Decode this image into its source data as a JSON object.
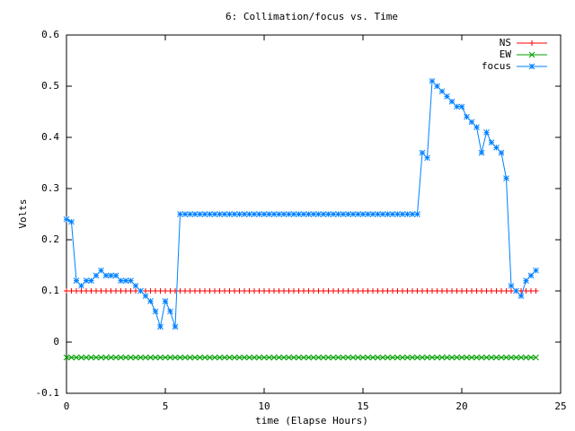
{
  "chart_data": {
    "type": "line",
    "title": "6: Collimation/focus vs. Time",
    "x_label": "time (Elapse Hours)",
    "y_label": "Volts",
    "legend": "top-right",
    "xlim": [
      0,
      25
    ],
    "xticks": [
      0,
      5,
      10,
      15,
      20,
      25
    ],
    "ylim": [
      -0.1,
      0.6
    ],
    "yticks": [
      -0.1,
      0,
      0.1,
      0.2,
      0.3,
      0.4,
      0.5,
      0.6
    ],
    "x": [
      0,
      0.25,
      0.5,
      0.75,
      1,
      1.25,
      1.5,
      1.75,
      2,
      2.25,
      2.5,
      2.75,
      3,
      3.25,
      3.5,
      3.75,
      4,
      4.25,
      4.5,
      4.75,
      5,
      5.25,
      5.5,
      5.75,
      6,
      6.25,
      6.5,
      6.75,
      7,
      7.25,
      7.5,
      7.75,
      8,
      8.25,
      8.5,
      8.75,
      9,
      9.25,
      9.5,
      9.75,
      10,
      10.25,
      10.5,
      10.75,
      11,
      11.25,
      11.5,
      11.75,
      12,
      12.25,
      12.5,
      12.75,
      13,
      13.25,
      13.5,
      13.75,
      14,
      14.25,
      14.5,
      14.75,
      15,
      15.25,
      15.5,
      15.75,
      16,
      16.25,
      16.5,
      16.75,
      17,
      17.25,
      17.5,
      17.75,
      18,
      18.25,
      18.5,
      18.75,
      19,
      19.25,
      19.5,
      19.75,
      20,
      20.25,
      20.5,
      20.75,
      21,
      21.25,
      21.5,
      21.75,
      22,
      22.25,
      22.5,
      22.75,
      23,
      23.25,
      23.5,
      23.75
    ],
    "series": [
      {
        "name": "NS",
        "color": "#ff0000",
        "marker": "plus",
        "values": [
          0.1,
          0.1,
          0.1,
          0.1,
          0.1,
          0.1,
          0.1,
          0.1,
          0.1,
          0.1,
          0.1,
          0.1,
          0.1,
          0.1,
          0.1,
          0.1,
          0.1,
          0.1,
          0.1,
          0.1,
          0.1,
          0.1,
          0.1,
          0.1,
          0.1,
          0.1,
          0.1,
          0.1,
          0.1,
          0.1,
          0.1,
          0.1,
          0.1,
          0.1,
          0.1,
          0.1,
          0.1,
          0.1,
          0.1,
          0.1,
          0.1,
          0.1,
          0.1,
          0.1,
          0.1,
          0.1,
          0.1,
          0.1,
          0.1,
          0.1,
          0.1,
          0.1,
          0.1,
          0.1,
          0.1,
          0.1,
          0.1,
          0.1,
          0.1,
          0.1,
          0.1,
          0.1,
          0.1,
          0.1,
          0.1,
          0.1,
          0.1,
          0.1,
          0.1,
          0.1,
          0.1,
          0.1,
          0.1,
          0.1,
          0.1,
          0.1,
          0.1,
          0.1,
          0.1,
          0.1,
          0.1,
          0.1,
          0.1,
          0.1,
          0.1,
          0.1,
          0.1,
          0.1,
          0.1,
          0.1,
          0.1,
          0.1,
          0.1,
          0.1,
          0.1,
          0.1
        ]
      },
      {
        "name": "EW",
        "color": "#00a000",
        "marker": "cross",
        "values": [
          -0.03,
          -0.03,
          -0.03,
          -0.03,
          -0.03,
          -0.03,
          -0.03,
          -0.03,
          -0.03,
          -0.03,
          -0.03,
          -0.03,
          -0.03,
          -0.03,
          -0.03,
          -0.03,
          -0.03,
          -0.03,
          -0.03,
          -0.03,
          -0.03,
          -0.03,
          -0.03,
          -0.03,
          -0.03,
          -0.03,
          -0.03,
          -0.03,
          -0.03,
          -0.03,
          -0.03,
          -0.03,
          -0.03,
          -0.03,
          -0.03,
          -0.03,
          -0.03,
          -0.03,
          -0.03,
          -0.03,
          -0.03,
          -0.03,
          -0.03,
          -0.03,
          -0.03,
          -0.03,
          -0.03,
          -0.03,
          -0.03,
          -0.03,
          -0.03,
          -0.03,
          -0.03,
          -0.03,
          -0.03,
          -0.03,
          -0.03,
          -0.03,
          -0.03,
          -0.03,
          -0.03,
          -0.03,
          -0.03,
          -0.03,
          -0.03,
          -0.03,
          -0.03,
          -0.03,
          -0.03,
          -0.03,
          -0.03,
          -0.03,
          -0.03,
          -0.03,
          -0.03,
          -0.03,
          -0.03,
          -0.03,
          -0.03,
          -0.03,
          -0.03,
          -0.03,
          -0.03,
          -0.03,
          -0.03,
          -0.03,
          -0.03,
          -0.03,
          -0.03,
          -0.03,
          -0.03,
          -0.03,
          -0.03,
          -0.03,
          -0.03,
          -0.03
        ]
      },
      {
        "name": "focus",
        "color": "#0080ff",
        "marker": "star",
        "values": [
          0.24,
          0.235,
          0.12,
          0.11,
          0.12,
          0.12,
          0.13,
          0.14,
          0.13,
          0.13,
          0.13,
          0.12,
          0.12,
          0.12,
          0.11,
          0.1,
          0.09,
          0.08,
          0.06,
          0.03,
          0.08,
          0.06,
          0.03,
          0.25,
          0.25,
          0.25,
          0.25,
          0.25,
          0.25,
          0.25,
          0.25,
          0.25,
          0.25,
          0.25,
          0.25,
          0.25,
          0.25,
          0.25,
          0.25,
          0.25,
          0.25,
          0.25,
          0.25,
          0.25,
          0.25,
          0.25,
          0.25,
          0.25,
          0.25,
          0.25,
          0.25,
          0.25,
          0.25,
          0.25,
          0.25,
          0.25,
          0.25,
          0.25,
          0.25,
          0.25,
          0.25,
          0.25,
          0.25,
          0.25,
          0.25,
          0.25,
          0.25,
          0.25,
          0.25,
          0.25,
          0.25,
          0.25,
          0.37,
          0.36,
          0.51,
          0.5,
          0.49,
          0.48,
          0.47,
          0.46,
          0.46,
          0.44,
          0.43,
          0.42,
          0.37,
          0.41,
          0.39,
          0.38,
          0.37,
          0.32,
          0.11,
          0.1,
          0.09,
          0.12,
          0.13,
          0.14
        ]
      }
    ]
  }
}
